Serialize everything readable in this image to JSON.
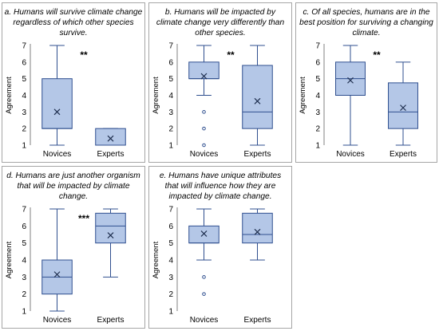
{
  "style": {
    "box_fill": "#b4c7e7",
    "box_stroke": "#2f4f8f",
    "panel_border": "#a6a6a6",
    "text_color": "#000000"
  },
  "chart_data": [
    {
      "type": "boxplot",
      "title": "a. Humans will survive climate change regardless of which other species survive.",
      "title_lines": [
        "a. Humans will survive climate change",
        "regardless of which other species",
        "survive."
      ],
      "ylabel": "Agreement",
      "ylim": [
        1,
        7
      ],
      "yticks": [
        "1",
        "2",
        "3",
        "4",
        "5",
        "6",
        "7"
      ],
      "categories": [
        "Novices",
        "Experts"
      ],
      "significance": "**",
      "boxes": [
        {
          "category": "Novices",
          "min": 1,
          "q1": 2,
          "median": 2,
          "q3": 5,
          "max": 7,
          "mean": 3.0,
          "outliers": []
        },
        {
          "category": "Experts",
          "min": 1,
          "q1": 1,
          "median": 1,
          "q3": 2,
          "max": 2,
          "mean": 1.4,
          "outliers": []
        }
      ]
    },
    {
      "type": "boxplot",
      "title": "b. Humans will be impacted by climate change very differently than other species.",
      "title_lines": [
        "b. Humans will be impacted by",
        "climate change very differently than",
        "other species."
      ],
      "ylabel": "Agreement",
      "ylim": [
        1,
        7
      ],
      "yticks": [
        "1",
        "2",
        "3",
        "4",
        "5",
        "6",
        "7"
      ],
      "categories": [
        "Novices",
        "Experts"
      ],
      "significance": "**",
      "boxes": [
        {
          "category": "Novices",
          "min": 4,
          "q1": 5,
          "median": 5,
          "q3": 6,
          "max": 7,
          "mean": 5.15,
          "outliers": [
            1,
            2,
            3
          ]
        },
        {
          "category": "Experts",
          "min": 1,
          "q1": 2,
          "median": 3,
          "q3": 5.8,
          "max": 7,
          "mean": 3.65,
          "outliers": []
        }
      ]
    },
    {
      "type": "boxplot",
      "title": "c. Of all species, humans are in the best position for surviving a changing climate.",
      "title_lines": [
        "c. Of all species, humans are in the",
        "best position for surviving a changing",
        "climate."
      ],
      "ylabel": "Agreement",
      "ylim": [
        1,
        7
      ],
      "yticks": [
        "1",
        "2",
        "3",
        "4",
        "5",
        "6",
        "7"
      ],
      "categories": [
        "Novices",
        "Experts"
      ],
      "significance": "**",
      "boxes": [
        {
          "category": "Novices",
          "min": 1,
          "q1": 4,
          "median": 5,
          "q3": 6,
          "max": 7,
          "mean": 4.9,
          "outliers": []
        },
        {
          "category": "Experts",
          "min": 1,
          "q1": 2,
          "median": 3,
          "q3": 4.75,
          "max": 6,
          "mean": 3.25,
          "outliers": []
        }
      ]
    },
    {
      "type": "boxplot",
      "title": "d. Humans are just another organism that will be impacted by climate change.",
      "title_lines": [
        "d. Humans are just another organism",
        "that will be impacted by climate",
        "change."
      ],
      "ylabel": "Agreement",
      "ylim": [
        1,
        7
      ],
      "yticks": [
        "1",
        "2",
        "3",
        "4",
        "5",
        "6",
        "7"
      ],
      "categories": [
        "Novices",
        "Experts"
      ],
      "significance": "***",
      "boxes": [
        {
          "category": "Novices",
          "min": 1,
          "q1": 2,
          "median": 3,
          "q3": 4,
          "max": 7,
          "mean": 3.15,
          "outliers": []
        },
        {
          "category": "Experts",
          "min": 3,
          "q1": 5,
          "median": 6,
          "q3": 6.75,
          "max": 7,
          "mean": 5.45,
          "outliers": []
        }
      ]
    },
    {
      "type": "boxplot",
      "title": "e. Humans have unique attributes that will influence how they are impacted by climate change.",
      "title_lines": [
        "e. Humans have unique attributes",
        "that will influence how they are",
        "impacted by climate change."
      ],
      "ylabel": "Agreement",
      "ylim": [
        1,
        7
      ],
      "yticks": [
        "1",
        "2",
        "3",
        "4",
        "5",
        "6",
        "7"
      ],
      "categories": [
        "Novices",
        "Experts"
      ],
      "significance": "",
      "boxes": [
        {
          "category": "Novices",
          "min": 4,
          "q1": 5,
          "median": 5,
          "q3": 6,
          "max": 7,
          "mean": 5.55,
          "outliers": [
            2,
            3
          ]
        },
        {
          "category": "Experts",
          "min": 4,
          "q1": 5,
          "median": 5.5,
          "q3": 6.75,
          "max": 7,
          "mean": 5.65,
          "outliers": []
        }
      ]
    }
  ]
}
